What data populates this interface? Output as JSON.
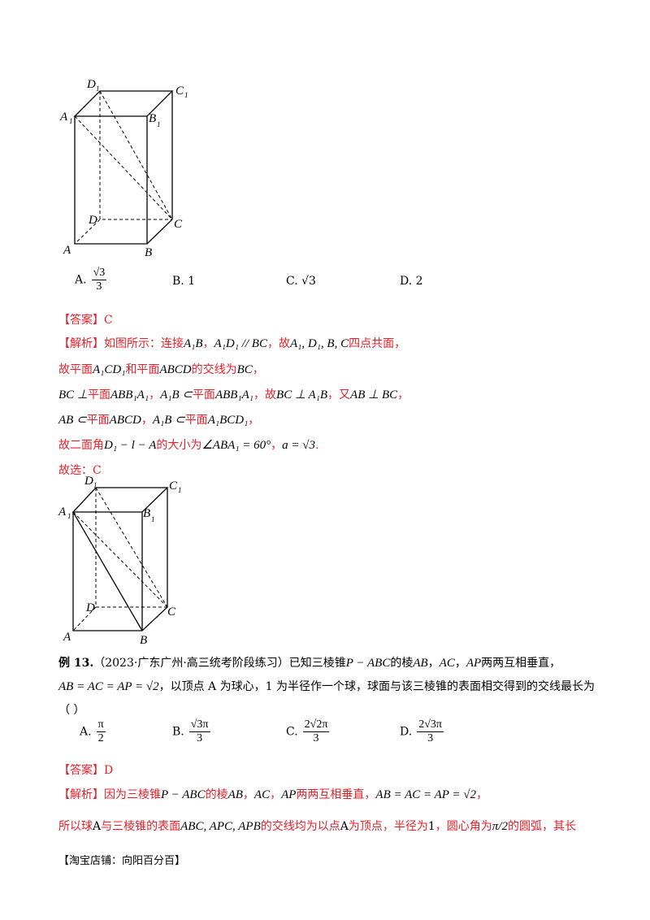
{
  "figure1": {
    "labels": {
      "D1": "D",
      "C1": "C",
      "A1": "A",
      "B1": "B",
      "D": "D",
      "C": "C",
      "A": "A",
      "B": "B",
      "sub": "1"
    }
  },
  "q12_options": [
    {
      "letter": "A.",
      "num": "√3",
      "den": "3"
    },
    {
      "letter": "B.",
      "text": "1"
    },
    {
      "letter": "C.",
      "text": "√3"
    },
    {
      "letter": "D.",
      "text": "2"
    }
  ],
  "q12_answer": [
    {
      "t": "【答案】C",
      "c": "r"
    }
  ],
  "q12_solution": [
    [
      {
        "t": "【解析】如图所示：连接",
        "c": "r"
      },
      {
        "t": "A₁B",
        "c": "k",
        "m": true
      },
      {
        "t": "，",
        "c": "r"
      },
      {
        "t": "A₁D₁ // BC",
        "c": "k",
        "m": true
      },
      {
        "t": "，故",
        "c": "r"
      },
      {
        "t": "A₁, D₁, B, C",
        "c": "k",
        "m": true
      },
      {
        "t": "四点共面，",
        "c": "r"
      }
    ],
    [
      {
        "t": "故平面",
        "c": "r"
      },
      {
        "t": "A₁CD₁",
        "c": "k",
        "m": true
      },
      {
        "t": "和平面",
        "c": "r"
      },
      {
        "t": "ABCD",
        "c": "k",
        "m": true
      },
      {
        "t": "的交线为",
        "c": "r"
      },
      {
        "t": "BC",
        "c": "k",
        "m": true
      },
      {
        "t": "，",
        "c": "r"
      }
    ],
    [
      {
        "t": "BC ⊥",
        "c": "k",
        "m": true
      },
      {
        "t": "平面",
        "c": "r"
      },
      {
        "t": "ABB₁A₁",
        "c": "k",
        "m": true
      },
      {
        "t": "，",
        "c": "r"
      },
      {
        "t": "A₁B ⊂",
        "c": "k",
        "m": true
      },
      {
        "t": "平面",
        "c": "r"
      },
      {
        "t": "ABB₁A₁",
        "c": "k",
        "m": true
      },
      {
        "t": "，故",
        "c": "r"
      },
      {
        "t": "BC ⊥ A₁B",
        "c": "k",
        "m": true
      },
      {
        "t": "，又",
        "c": "r"
      },
      {
        "t": "AB ⊥ BC",
        "c": "k",
        "m": true
      },
      {
        "t": "，",
        "c": "r"
      }
    ],
    [
      {
        "t": "AB ⊂",
        "c": "k",
        "m": true
      },
      {
        "t": "平面",
        "c": "r"
      },
      {
        "t": "ABCD",
        "c": "k",
        "m": true
      },
      {
        "t": "，",
        "c": "r"
      },
      {
        "t": "A₁B ⊂",
        "c": "k",
        "m": true
      },
      {
        "t": "平面",
        "c": "r"
      },
      {
        "t": "A₁BCD₁",
        "c": "k",
        "m": true
      },
      {
        "t": "，",
        "c": "r"
      }
    ],
    [
      {
        "t": "故二面角",
        "c": "r"
      },
      {
        "t": "D₁ − l − A",
        "c": "k",
        "m": true
      },
      {
        "t": "的大小为",
        "c": "r"
      },
      {
        "t": "∠ABA₁ = 60°",
        "c": "k",
        "m": true
      },
      {
        "t": "，",
        "c": "r"
      },
      {
        "t": "a = √3",
        "c": "k",
        "m": true
      },
      {
        "t": ".",
        "c": "r"
      }
    ]
  ],
  "q12_final": [
    {
      "t": "故选：C",
      "c": "r"
    }
  ],
  "q13_stem": [
    [
      {
        "t": "例 13.",
        "c": "k",
        "b": true
      },
      {
        "t": "（2023·广东广州·高三统考阶段练习）已知三棱锥",
        "c": "k"
      },
      {
        "t": "P − ABC",
        "c": "k",
        "m": true
      },
      {
        "t": "的棱",
        "c": "k"
      },
      {
        "t": "AB",
        "c": "k",
        "m": true
      },
      {
        "t": "，",
        "c": "k"
      },
      {
        "t": "AC",
        "c": "k",
        "m": true
      },
      {
        "t": "，",
        "c": "k"
      },
      {
        "t": "AP",
        "c": "k",
        "m": true
      },
      {
        "t": "两两互相垂直，",
        "c": "k"
      }
    ],
    [
      {
        "t": "AB = AC = AP = √2",
        "c": "k",
        "m": true
      },
      {
        "t": "，以顶点 A 为球心，1 为半径作一个球，球面与该三棱锥的表面相交得到的交线最长为",
        "c": "k"
      }
    ],
    [
      {
        "t": "（    ）",
        "c": "k"
      }
    ]
  ],
  "q13_options": [
    {
      "letter": "A.",
      "num": "π",
      "den": "2"
    },
    {
      "letter": "B.",
      "num": "√3π",
      "den": "3"
    },
    {
      "letter": "C.",
      "num": "2√2π",
      "den": "3"
    },
    {
      "letter": "D.",
      "num": "2√3π",
      "den": "3"
    }
  ],
  "q13_answer": [
    {
      "t": "【答案】D",
      "c": "r"
    }
  ],
  "q13_solution": [
    [
      {
        "t": "【解析】因为三棱锥",
        "c": "r"
      },
      {
        "t": "P − ABC",
        "c": "k",
        "m": true
      },
      {
        "t": "的棱",
        "c": "r"
      },
      {
        "t": "AB",
        "c": "k",
        "m": true
      },
      {
        "t": "，",
        "c": "r"
      },
      {
        "t": "AC",
        "c": "k",
        "m": true
      },
      {
        "t": "，",
        "c": "r"
      },
      {
        "t": "AP",
        "c": "k",
        "m": true
      },
      {
        "t": "两两互相垂直，",
        "c": "r"
      },
      {
        "t": "AB = AC = AP = √2",
        "c": "k",
        "m": true
      },
      {
        "t": "，",
        "c": "r"
      }
    ],
    [
      {
        "t": "所以球",
        "c": "r"
      },
      {
        "t": "A",
        "c": "k"
      },
      {
        "t": "与三棱锥的表面",
        "c": "r"
      },
      {
        "t": "ABC, APC, APB",
        "c": "k",
        "m": true
      },
      {
        "t": "的交线均为以点",
        "c": "r"
      },
      {
        "t": "A",
        "c": "k"
      },
      {
        "t": "为顶点，半径为",
        "c": "r"
      },
      {
        "t": "1",
        "c": "k"
      },
      {
        "t": "，圆心角为",
        "c": "r"
      },
      {
        "t": "π/2",
        "c": "k",
        "m": true
      },
      {
        "t": "的圆弧，其长",
        "c": "r"
      }
    ]
  ],
  "footer": "【淘宝店铺：向阳百分百】"
}
